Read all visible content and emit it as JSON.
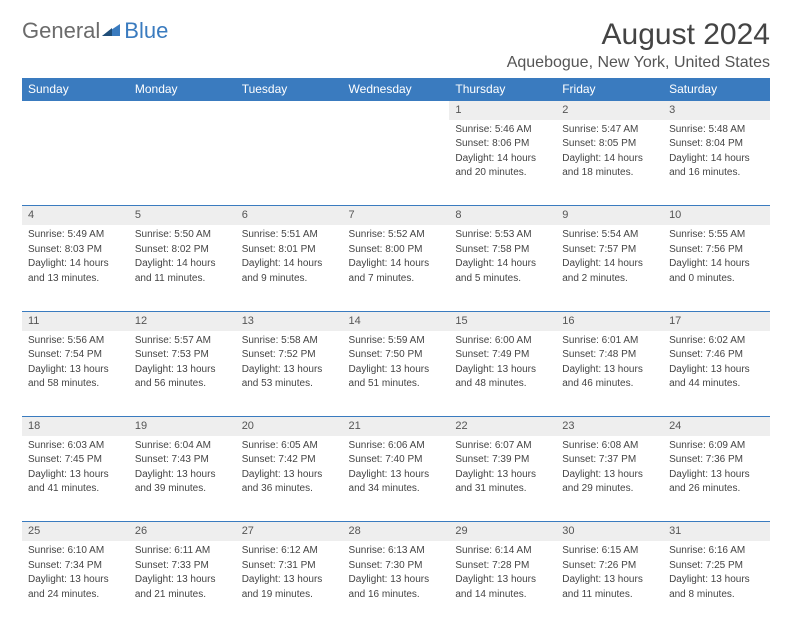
{
  "logo": {
    "general": "General",
    "blue": "Blue"
  },
  "title": "August 2024",
  "location": "Aquebogue, New York, United States",
  "colors": {
    "header_bg": "#3a7bbf",
    "header_fg": "#ffffff",
    "daynum_bg": "#eeeeee",
    "border": "#3a7bbf",
    "text": "#444444"
  },
  "day_names": [
    "Sunday",
    "Monday",
    "Tuesday",
    "Wednesday",
    "Thursday",
    "Friday",
    "Saturday"
  ],
  "weeks": [
    [
      {
        "n": "",
        "sr": "",
        "ss": "",
        "dl1": "",
        "dl2": ""
      },
      {
        "n": "",
        "sr": "",
        "ss": "",
        "dl1": "",
        "dl2": ""
      },
      {
        "n": "",
        "sr": "",
        "ss": "",
        "dl1": "",
        "dl2": ""
      },
      {
        "n": "",
        "sr": "",
        "ss": "",
        "dl1": "",
        "dl2": ""
      },
      {
        "n": "1",
        "sr": "Sunrise: 5:46 AM",
        "ss": "Sunset: 8:06 PM",
        "dl1": "Daylight: 14 hours",
        "dl2": "and 20 minutes."
      },
      {
        "n": "2",
        "sr": "Sunrise: 5:47 AM",
        "ss": "Sunset: 8:05 PM",
        "dl1": "Daylight: 14 hours",
        "dl2": "and 18 minutes."
      },
      {
        "n": "3",
        "sr": "Sunrise: 5:48 AM",
        "ss": "Sunset: 8:04 PM",
        "dl1": "Daylight: 14 hours",
        "dl2": "and 16 minutes."
      }
    ],
    [
      {
        "n": "4",
        "sr": "Sunrise: 5:49 AM",
        "ss": "Sunset: 8:03 PM",
        "dl1": "Daylight: 14 hours",
        "dl2": "and 13 minutes."
      },
      {
        "n": "5",
        "sr": "Sunrise: 5:50 AM",
        "ss": "Sunset: 8:02 PM",
        "dl1": "Daylight: 14 hours",
        "dl2": "and 11 minutes."
      },
      {
        "n": "6",
        "sr": "Sunrise: 5:51 AM",
        "ss": "Sunset: 8:01 PM",
        "dl1": "Daylight: 14 hours",
        "dl2": "and 9 minutes."
      },
      {
        "n": "7",
        "sr": "Sunrise: 5:52 AM",
        "ss": "Sunset: 8:00 PM",
        "dl1": "Daylight: 14 hours",
        "dl2": "and 7 minutes."
      },
      {
        "n": "8",
        "sr": "Sunrise: 5:53 AM",
        "ss": "Sunset: 7:58 PM",
        "dl1": "Daylight: 14 hours",
        "dl2": "and 5 minutes."
      },
      {
        "n": "9",
        "sr": "Sunrise: 5:54 AM",
        "ss": "Sunset: 7:57 PM",
        "dl1": "Daylight: 14 hours",
        "dl2": "and 2 minutes."
      },
      {
        "n": "10",
        "sr": "Sunrise: 5:55 AM",
        "ss": "Sunset: 7:56 PM",
        "dl1": "Daylight: 14 hours",
        "dl2": "and 0 minutes."
      }
    ],
    [
      {
        "n": "11",
        "sr": "Sunrise: 5:56 AM",
        "ss": "Sunset: 7:54 PM",
        "dl1": "Daylight: 13 hours",
        "dl2": "and 58 minutes."
      },
      {
        "n": "12",
        "sr": "Sunrise: 5:57 AM",
        "ss": "Sunset: 7:53 PM",
        "dl1": "Daylight: 13 hours",
        "dl2": "and 56 minutes."
      },
      {
        "n": "13",
        "sr": "Sunrise: 5:58 AM",
        "ss": "Sunset: 7:52 PM",
        "dl1": "Daylight: 13 hours",
        "dl2": "and 53 minutes."
      },
      {
        "n": "14",
        "sr": "Sunrise: 5:59 AM",
        "ss": "Sunset: 7:50 PM",
        "dl1": "Daylight: 13 hours",
        "dl2": "and 51 minutes."
      },
      {
        "n": "15",
        "sr": "Sunrise: 6:00 AM",
        "ss": "Sunset: 7:49 PM",
        "dl1": "Daylight: 13 hours",
        "dl2": "and 48 minutes."
      },
      {
        "n": "16",
        "sr": "Sunrise: 6:01 AM",
        "ss": "Sunset: 7:48 PM",
        "dl1": "Daylight: 13 hours",
        "dl2": "and 46 minutes."
      },
      {
        "n": "17",
        "sr": "Sunrise: 6:02 AM",
        "ss": "Sunset: 7:46 PM",
        "dl1": "Daylight: 13 hours",
        "dl2": "and 44 minutes."
      }
    ],
    [
      {
        "n": "18",
        "sr": "Sunrise: 6:03 AM",
        "ss": "Sunset: 7:45 PM",
        "dl1": "Daylight: 13 hours",
        "dl2": "and 41 minutes."
      },
      {
        "n": "19",
        "sr": "Sunrise: 6:04 AM",
        "ss": "Sunset: 7:43 PM",
        "dl1": "Daylight: 13 hours",
        "dl2": "and 39 minutes."
      },
      {
        "n": "20",
        "sr": "Sunrise: 6:05 AM",
        "ss": "Sunset: 7:42 PM",
        "dl1": "Daylight: 13 hours",
        "dl2": "and 36 minutes."
      },
      {
        "n": "21",
        "sr": "Sunrise: 6:06 AM",
        "ss": "Sunset: 7:40 PM",
        "dl1": "Daylight: 13 hours",
        "dl2": "and 34 minutes."
      },
      {
        "n": "22",
        "sr": "Sunrise: 6:07 AM",
        "ss": "Sunset: 7:39 PM",
        "dl1": "Daylight: 13 hours",
        "dl2": "and 31 minutes."
      },
      {
        "n": "23",
        "sr": "Sunrise: 6:08 AM",
        "ss": "Sunset: 7:37 PM",
        "dl1": "Daylight: 13 hours",
        "dl2": "and 29 minutes."
      },
      {
        "n": "24",
        "sr": "Sunrise: 6:09 AM",
        "ss": "Sunset: 7:36 PM",
        "dl1": "Daylight: 13 hours",
        "dl2": "and 26 minutes."
      }
    ],
    [
      {
        "n": "25",
        "sr": "Sunrise: 6:10 AM",
        "ss": "Sunset: 7:34 PM",
        "dl1": "Daylight: 13 hours",
        "dl2": "and 24 minutes."
      },
      {
        "n": "26",
        "sr": "Sunrise: 6:11 AM",
        "ss": "Sunset: 7:33 PM",
        "dl1": "Daylight: 13 hours",
        "dl2": "and 21 minutes."
      },
      {
        "n": "27",
        "sr": "Sunrise: 6:12 AM",
        "ss": "Sunset: 7:31 PM",
        "dl1": "Daylight: 13 hours",
        "dl2": "and 19 minutes."
      },
      {
        "n": "28",
        "sr": "Sunrise: 6:13 AM",
        "ss": "Sunset: 7:30 PM",
        "dl1": "Daylight: 13 hours",
        "dl2": "and 16 minutes."
      },
      {
        "n": "29",
        "sr": "Sunrise: 6:14 AM",
        "ss": "Sunset: 7:28 PM",
        "dl1": "Daylight: 13 hours",
        "dl2": "and 14 minutes."
      },
      {
        "n": "30",
        "sr": "Sunrise: 6:15 AM",
        "ss": "Sunset: 7:26 PM",
        "dl1": "Daylight: 13 hours",
        "dl2": "and 11 minutes."
      },
      {
        "n": "31",
        "sr": "Sunrise: 6:16 AM",
        "ss": "Sunset: 7:25 PM",
        "dl1": "Daylight: 13 hours",
        "dl2": "and 8 minutes."
      }
    ]
  ]
}
